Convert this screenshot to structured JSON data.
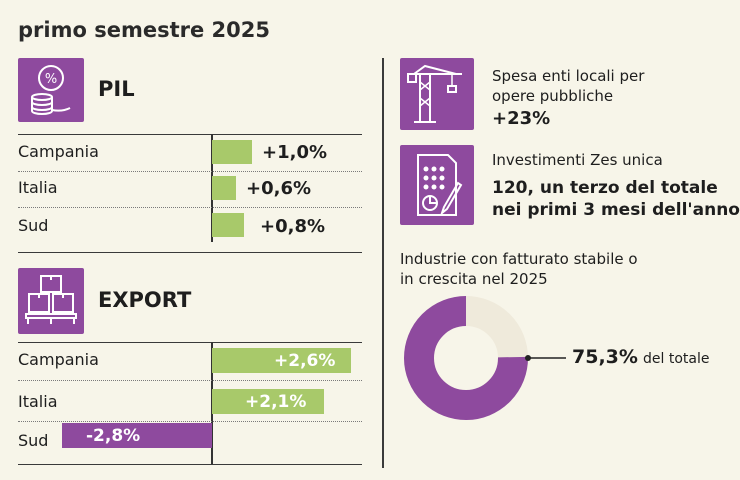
{
  "heading": "primo semestre 2025",
  "colors": {
    "purple": "#8e4a9e",
    "green": "#a8c96a",
    "background": "#f7f5e9"
  },
  "pil": {
    "title": "PIL",
    "icon": "coins-percent-icon",
    "rows": [
      {
        "label": "Campania",
        "value_text": "+1,0%"
      },
      {
        "label": "Italia",
        "value_text": "+0,6%"
      },
      {
        "label": "Sud",
        "value_text": "+0,8%"
      }
    ]
  },
  "export": {
    "title": "EXPORT",
    "icon": "boxes-pallet-icon",
    "rows": [
      {
        "label": "Campania",
        "value_text": "+2,6%"
      },
      {
        "label": "Italia",
        "value_text": "+2,1%"
      },
      {
        "label": "Sud",
        "value_text": "-2,8%"
      }
    ]
  },
  "spesa": {
    "icon": "crane-icon",
    "line1": "Spesa enti locali per",
    "line2": "opere pubbliche",
    "value": "+23%"
  },
  "zes": {
    "icon": "document-chart-icon",
    "line1": "Investimenti Zes unica",
    "value_line1": "120, un terzo del totale",
    "value_line2": "nei primi 3 mesi dell'anno"
  },
  "industrie": {
    "line1": "Industrie con fatturato stabile o",
    "line2": "in crescita nel 2025",
    "value": "75,3%",
    "suffix": "del totale"
  },
  "chart_data": [
    {
      "type": "bar",
      "title": "PIL",
      "categories": [
        "Campania",
        "Italia",
        "Sud"
      ],
      "values": [
        1.0,
        0.6,
        0.8
      ],
      "unit": "%"
    },
    {
      "type": "bar",
      "title": "EXPORT",
      "categories": [
        "Campania",
        "Italia",
        "Sud"
      ],
      "values": [
        2.6,
        2.1,
        -2.8
      ],
      "unit": "%"
    },
    {
      "type": "pie",
      "title": "Industrie con fatturato stabile o in crescita nel 2025",
      "values": [
        75.3,
        24.7
      ],
      "unit": "%"
    }
  ]
}
